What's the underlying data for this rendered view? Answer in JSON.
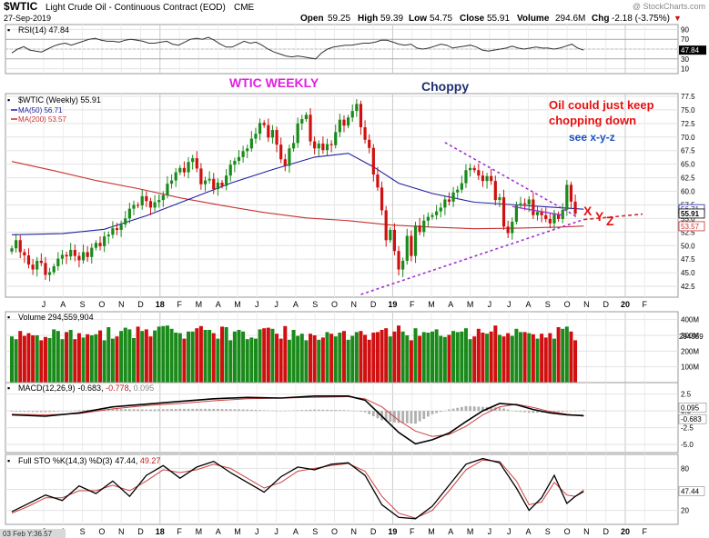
{
  "header": {
    "symbol": "$WTIC",
    "name": "Light Crude Oil - Continuous Contract (EOD)",
    "exchange": "CME",
    "date": "27-Sep-2019",
    "open_label": "Open",
    "open": "59.25",
    "high_label": "High",
    "high": "59.39",
    "low_label": "Low",
    "low": "54.75",
    "close_label": "Close",
    "close": "55.91",
    "volume_label": "Volume",
    "volume": "294.6M",
    "chg_label": "Chg",
    "chg": "-2.18 (-3.75%)",
    "chg_arrow": "▼",
    "brand": "@ StockCharts.com"
  },
  "colors": {
    "up": "#1a8a1a",
    "down": "#d01010",
    "ma50": "#2020a0",
    "ma200": "#c83030",
    "trend": "#a030d0",
    "annotation_red": "#e81010",
    "annotation_blue": "#1a50c0",
    "annotation_magenta": "#e020e0"
  },
  "annotations": {
    "title": "WTIC WEEKLY",
    "choppy": "Choppy",
    "note_line1": "Oil could just keep",
    "note_line2": "chopping down",
    "note_line3": "see  x-y-z",
    "x": "X",
    "y": "Y",
    "z": "Z"
  },
  "footer": {
    "cursor_date": "03 Feb Y:36.57"
  },
  "x_axis": {
    "labels": [
      "J",
      "A",
      "S",
      "O",
      "N",
      "D",
      "18",
      "F",
      "M",
      "A",
      "M",
      "J",
      "J",
      "A",
      "S",
      "O",
      "N",
      "D",
      "19",
      "F",
      "M",
      "A",
      "M",
      "J",
      "J",
      "A",
      "S",
      "O",
      "N",
      "D",
      "20",
      "F"
    ],
    "bold": [
      "18",
      "19",
      "20"
    ]
  },
  "chart_data": [
    {
      "panel": "rsi",
      "type": "line",
      "label": "RSI(14) 47.84",
      "current": "47.84",
      "yticks": [
        "90",
        "70",
        "50",
        "30",
        "10"
      ],
      "ylim": [
        0,
        100
      ],
      "levels": [
        70,
        30
      ],
      "series": [
        {
          "values": [
            42,
            50,
            55,
            48,
            46,
            44,
            50,
            56,
            60,
            62,
            58,
            62,
            66,
            70,
            72,
            68,
            66,
            66,
            64,
            68,
            70,
            68,
            66,
            62,
            62,
            64,
            66,
            60,
            58,
            64,
            70,
            72,
            70,
            74,
            68,
            60,
            54,
            54,
            60,
            66,
            62,
            64,
            58,
            50,
            44,
            40,
            36,
            34,
            36,
            34,
            32,
            30,
            42,
            50,
            54,
            56,
            58,
            58,
            60,
            62,
            62,
            64,
            68,
            68,
            64,
            60,
            58,
            60,
            52,
            50,
            52,
            56,
            60,
            58,
            52,
            54,
            56,
            58,
            54,
            48,
            46,
            48,
            50,
            52,
            56,
            52,
            50,
            52,
            54,
            52,
            52,
            50,
            52,
            56,
            60,
            52,
            48
          ]
        }
      ]
    },
    {
      "panel": "price",
      "type": "candlestick",
      "label": "$WTIC (Weekly) 55.91",
      "ylim": [
        40.5,
        78
      ],
      "yticks": [
        "77.5",
        "75.0",
        "72.5",
        "70.0",
        "67.5",
        "65.0",
        "62.5",
        "60.0",
        "57.5",
        "55.0",
        "52.5",
        "50.0",
        "47.5",
        "45.0",
        "42.5"
      ],
      "price_tags": [
        {
          "text": "56.71",
          "color": "#2020a0",
          "value": 56.71
        },
        {
          "text": "55.91",
          "color": "#000000",
          "value": 55.91
        },
        {
          "text": "53.57",
          "color": "#c83030",
          "value": 53.57
        }
      ],
      "closes": [
        49.5,
        51.0,
        48.8,
        48.2,
        46.5,
        45.6,
        47.2,
        46.8,
        44.6,
        45.1,
        46.2,
        47.6,
        48.3,
        48.0,
        49.2,
        48.1,
        47.3,
        48.8,
        47.9,
        49.6,
        50.5,
        49.9,
        51.7,
        52.0,
        53.2,
        52.9,
        53.9,
        55.0,
        56.8,
        57.5,
        57.4,
        59.1,
        58.2,
        57.0,
        58.0,
        58.4,
        59.3,
        61.4,
        62.0,
        63.5,
        64.3,
        63.5,
        65.4,
        66.1,
        64.2,
        61.3,
        62.0,
        62.3,
        60.4,
        61.6,
        61.0,
        62.9,
        64.9,
        65.6,
        66.3,
        67.4,
        67.9,
        69.7,
        70.6,
        72.6,
        72.2,
        69.9,
        71.3,
        68.6,
        65.9,
        64.7,
        67.9,
        68.9,
        72.5,
        73.3,
        74.1,
        69.2,
        67.9,
        68.8,
        67.6,
        68.7,
        68.5,
        70.9,
        73.2,
        72.1,
        73.6,
        74.8,
        76.1,
        71.8,
        69.5,
        68.0,
        63.1,
        60.7,
        56.5,
        51.0,
        52.9,
        49.0,
        45.6,
        47.2,
        51.8,
        48.1,
        53.7,
        52.5,
        54.6,
        55.3,
        55.6,
        56.3,
        57.0,
        58.5,
        58.1,
        59.8,
        60.3,
        61.5,
        63.9,
        64.3,
        63.9,
        62.9,
        61.9,
        62.8,
        61.9,
        58.4,
        58.9,
        53.5,
        52.3,
        54.4,
        57.6,
        57.8,
        57.6,
        58.5,
        55.6,
        56.2,
        55.6,
        54.9,
        54.1,
        55.8,
        54.9,
        56.6,
        61.2,
        58.1,
        55.9
      ],
      "volumes": [
        0.78,
        0.73,
        0.88,
        0.79,
        0.84,
        0.8,
        0.8,
        0.71,
        0.77,
        0.75,
        0.91,
        0.88,
        0.73,
        0.86,
        0.9,
        0.73,
        0.84,
        0.76,
        0.82,
        0.8,
        0.82,
        0.89,
        0.71,
        0.95,
        0.74,
        0.78,
        0.88,
        0.94,
        0.91,
        0.75,
        0.96,
        0.88,
        0.91,
        0.78,
        0.89,
        0.96,
        0.97,
        0.98,
        0.92,
        0.85,
        0.84,
        0.74,
        0.87,
        0.87,
        0.93,
        0.97,
        0.9,
        0.9,
        0.84,
        0.74,
        0.96,
        0.95,
        0.71,
        0.87,
        0.9,
        0.87,
        0.73,
        0.76,
        0.74,
        0.91,
        0.93,
        0.94,
        0.92,
        0.83,
        0.74,
        0.97,
        0.72,
        0.9,
        0.79,
        0.83,
        0.71,
        0.83,
        0.8,
        0.72,
        0.76,
        0.86,
        0.83,
        0.78,
        0.85,
        0.88,
        0.72,
        0.79,
        0.86,
        0.88,
        0.81,
        0.72,
        0.85,
        0.86,
        0.9,
        0.93,
        0.78,
        0.87,
        0.98,
        0.87,
        0.8,
        0.71,
        0.93,
        0.79,
        0.86,
        0.85,
        0.87,
        0.91,
        0.79,
        0.77,
        0.81,
        0.88,
        0.86,
        0.87,
        0.93,
        0.73,
        0.78,
        0.92,
        0.85,
        0.83,
        0.87,
        0.98,
        0.81,
        0.78,
        0.84,
        0.79,
        0.92,
        0.86,
        0.86,
        0.84,
        0.82,
        0.74,
        0.83,
        0.76,
        0.84,
        0.74,
        0.95,
        0.92,
        0.96,
        0.87,
        0.71
      ],
      "ma50_label": "MA(50) 56.71",
      "ma200_label": "MA(200) 53.57",
      "ma50": [
        [
          0,
          52.0
        ],
        [
          12,
          52.2
        ],
        [
          22,
          53.0
        ],
        [
          32,
          55.5
        ],
        [
          42,
          58.5
        ],
        [
          52,
          61.5
        ],
        [
          62,
          64.0
        ],
        [
          72,
          66.3
        ],
        [
          80,
          67.0
        ],
        [
          86,
          64.5
        ],
        [
          92,
          61.5
        ],
        [
          100,
          59.6
        ],
        [
          110,
          58.0
        ],
        [
          120,
          57.5
        ],
        [
          130,
          57.0
        ],
        [
          136,
          56.7
        ]
      ],
      "ma200": [
        [
          0,
          65.5
        ],
        [
          10,
          63.8
        ],
        [
          20,
          62.0
        ],
        [
          30,
          60.5
        ],
        [
          40,
          58.8
        ],
        [
          50,
          57.4
        ],
        [
          60,
          56.1
        ],
        [
          70,
          55.1
        ],
        [
          80,
          54.6
        ],
        [
          90,
          53.8
        ],
        [
          100,
          53.4
        ],
        [
          110,
          53.1
        ],
        [
          120,
          53.2
        ],
        [
          130,
          53.4
        ],
        [
          136,
          53.6
        ]
      ],
      "trendlines": [
        {
          "from": [
            103,
            69.0
          ],
          "to": [
            134,
            55.5
          ]
        },
        {
          "from": [
            83,
            41.0
          ],
          "to": [
            136,
            54.8
          ]
        },
        {
          "from": [
            136,
            54.8
          ],
          "to": [
            150,
            55.8
          ]
        },
        {
          "from": [
            119,
            57.2
          ],
          "to": [
            131,
            55.6
          ]
        }
      ]
    },
    {
      "panel": "volume",
      "type": "bar",
      "label": "Volume 294,559,904",
      "current": "294559",
      "yticks": [
        "400M",
        "300M",
        "200M",
        "100M"
      ],
      "ylim": [
        0,
        450
      ],
      "values_source": "price.volumes"
    },
    {
      "panel": "macd",
      "type": "line",
      "label": "MACD(12,26,9)",
      "values_text": [
        "-0.683",
        ", ",
        "-0.778",
        ", ",
        "0.095"
      ],
      "values_colors": [
        "#000000",
        "#000000",
        "#c02020",
        "#000000",
        "#888888"
      ],
      "tags": [
        "0.095",
        "-0.683"
      ],
      "yticks": [
        "2.5",
        "0.0",
        "-2.5",
        "-5.0"
      ],
      "ylim": [
        -6.2,
        4.2
      ],
      "macd": [
        [
          0,
          -0.6
        ],
        [
          8,
          -0.8
        ],
        [
          16,
          -0.3
        ],
        [
          24,
          0.6
        ],
        [
          32,
          1.0
        ],
        [
          40,
          1.4
        ],
        [
          48,
          1.8
        ],
        [
          56,
          2.0
        ],
        [
          64,
          1.9
        ],
        [
          72,
          2.2
        ],
        [
          80,
          2.2
        ],
        [
          84,
          1.6
        ],
        [
          88,
          -0.8
        ],
        [
          92,
          -3.2
        ],
        [
          96,
          -4.9
        ],
        [
          100,
          -4.3
        ],
        [
          104,
          -3.3
        ],
        [
          108,
          -1.6
        ],
        [
          112,
          0.0
        ],
        [
          116,
          1.1
        ],
        [
          120,
          0.9
        ],
        [
          124,
          0.2
        ],
        [
          128,
          -0.3
        ],
        [
          132,
          -0.6
        ],
        [
          136,
          -0.7
        ]
      ],
      "signal": [
        [
          0,
          -0.5
        ],
        [
          8,
          -0.6
        ],
        [
          16,
          -0.4
        ],
        [
          24,
          0.3
        ],
        [
          32,
          0.8
        ],
        [
          40,
          1.1
        ],
        [
          48,
          1.5
        ],
        [
          56,
          1.8
        ],
        [
          64,
          1.9
        ],
        [
          72,
          2.0
        ],
        [
          80,
          2.1
        ],
        [
          84,
          1.8
        ],
        [
          88,
          0.6
        ],
        [
          92,
          -1.4
        ],
        [
          96,
          -3.0
        ],
        [
          100,
          -3.8
        ],
        [
          104,
          -3.5
        ],
        [
          108,
          -2.3
        ],
        [
          112,
          -0.6
        ],
        [
          116,
          0.6
        ],
        [
          120,
          1.0
        ],
        [
          124,
          0.5
        ],
        [
          128,
          -0.1
        ],
        [
          132,
          -0.5
        ],
        [
          136,
          -0.8
        ]
      ]
    },
    {
      "panel": "sto",
      "type": "line",
      "label": "Full STO %K(14,3) %D(3)",
      "values_text": [
        "47.44",
        ", ",
        "49.27"
      ],
      "values_colors": [
        "#000000",
        "#000000",
        "#c02020"
      ],
      "tags": [
        "47.44"
      ],
      "yticks": [
        "80",
        "50",
        "20"
      ],
      "ylim": [
        0,
        100
      ],
      "k": [
        [
          0,
          18
        ],
        [
          4,
          30
        ],
        [
          8,
          42
        ],
        [
          12,
          34
        ],
        [
          16,
          55
        ],
        [
          20,
          44
        ],
        [
          24,
          62
        ],
        [
          28,
          40
        ],
        [
          32,
          70
        ],
        [
          36,
          84
        ],
        [
          40,
          66
        ],
        [
          44,
          82
        ],
        [
          48,
          90
        ],
        [
          52,
          74
        ],
        [
          56,
          60
        ],
        [
          60,
          46
        ],
        [
          64,
          68
        ],
        [
          68,
          82
        ],
        [
          72,
          78
        ],
        [
          76,
          86
        ],
        [
          80,
          88
        ],
        [
          84,
          70
        ],
        [
          88,
          28
        ],
        [
          92,
          10
        ],
        [
          96,
          8
        ],
        [
          100,
          26
        ],
        [
          104,
          56
        ],
        [
          108,
          86
        ],
        [
          112,
          94
        ],
        [
          116,
          88
        ],
        [
          120,
          52
        ],
        [
          123,
          20
        ],
        [
          126,
          38
        ],
        [
          129,
          70
        ],
        [
          132,
          30
        ],
        [
          134,
          40
        ],
        [
          136,
          47
        ]
      ],
      "d": [
        [
          0,
          16
        ],
        [
          4,
          26
        ],
        [
          8,
          38
        ],
        [
          12,
          38
        ],
        [
          16,
          48
        ],
        [
          20,
          48
        ],
        [
          24,
          56
        ],
        [
          28,
          48
        ],
        [
          32,
          62
        ],
        [
          36,
          78
        ],
        [
          40,
          74
        ],
        [
          44,
          78
        ],
        [
          48,
          86
        ],
        [
          52,
          80
        ],
        [
          56,
          66
        ],
        [
          60,
          52
        ],
        [
          64,
          60
        ],
        [
          68,
          76
        ],
        [
          72,
          80
        ],
        [
          76,
          84
        ],
        [
          80,
          87
        ],
        [
          84,
          76
        ],
        [
          88,
          40
        ],
        [
          92,
          16
        ],
        [
          96,
          9
        ],
        [
          100,
          20
        ],
        [
          104,
          48
        ],
        [
          108,
          78
        ],
        [
          112,
          92
        ],
        [
          116,
          90
        ],
        [
          120,
          62
        ],
        [
          123,
          28
        ],
        [
          126,
          32
        ],
        [
          129,
          60
        ],
        [
          132,
          42
        ],
        [
          134,
          40
        ],
        [
          136,
          49
        ]
      ]
    }
  ]
}
